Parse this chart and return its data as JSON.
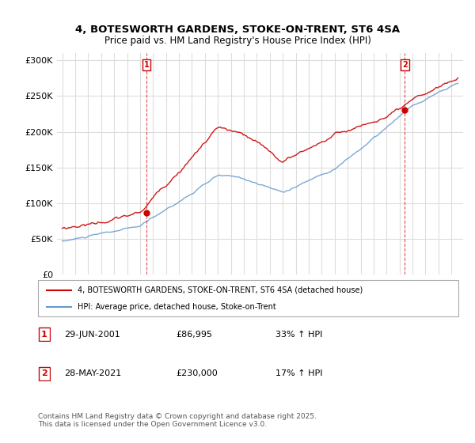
{
  "title": "4, BOTESWORTH GARDENS, STOKE-ON-TRENT, ST6 4SA",
  "subtitle": "Price paid vs. HM Land Registry's House Price Index (HPI)",
  "ylim": [
    0,
    310000
  ],
  "yticks": [
    0,
    50000,
    100000,
    150000,
    200000,
    250000,
    300000
  ],
  "ytick_labels": [
    "£0",
    "£50K",
    "£100K",
    "£150K",
    "£200K",
    "£250K",
    "£300K"
  ],
  "sale1_x": 2001.493,
  "sale1_price": 86995,
  "sale2_x": 2021.411,
  "sale2_price": 230000,
  "red_color": "#cc0000",
  "blue_color": "#6699cc",
  "legend_red_label": "4, BOTESWORTH GARDENS, STOKE-ON-TRENT, ST6 4SA (detached house)",
  "legend_blue_label": "HPI: Average price, detached house, Stoke-on-Trent",
  "footnote": "Contains HM Land Registry data © Crown copyright and database right 2025.\nThis data is licensed under the Open Government Licence v3.0.",
  "table_rows": [
    {
      "label": "1",
      "date": "29-JUN-2001",
      "price": "£86,995",
      "hpi": "33% ↑ HPI"
    },
    {
      "label": "2",
      "date": "28-MAY-2021",
      "price": "£230,000",
      "hpi": "17% ↑ HPI"
    }
  ],
  "background_color": "#ffffff",
  "grid_color": "#dddddd"
}
